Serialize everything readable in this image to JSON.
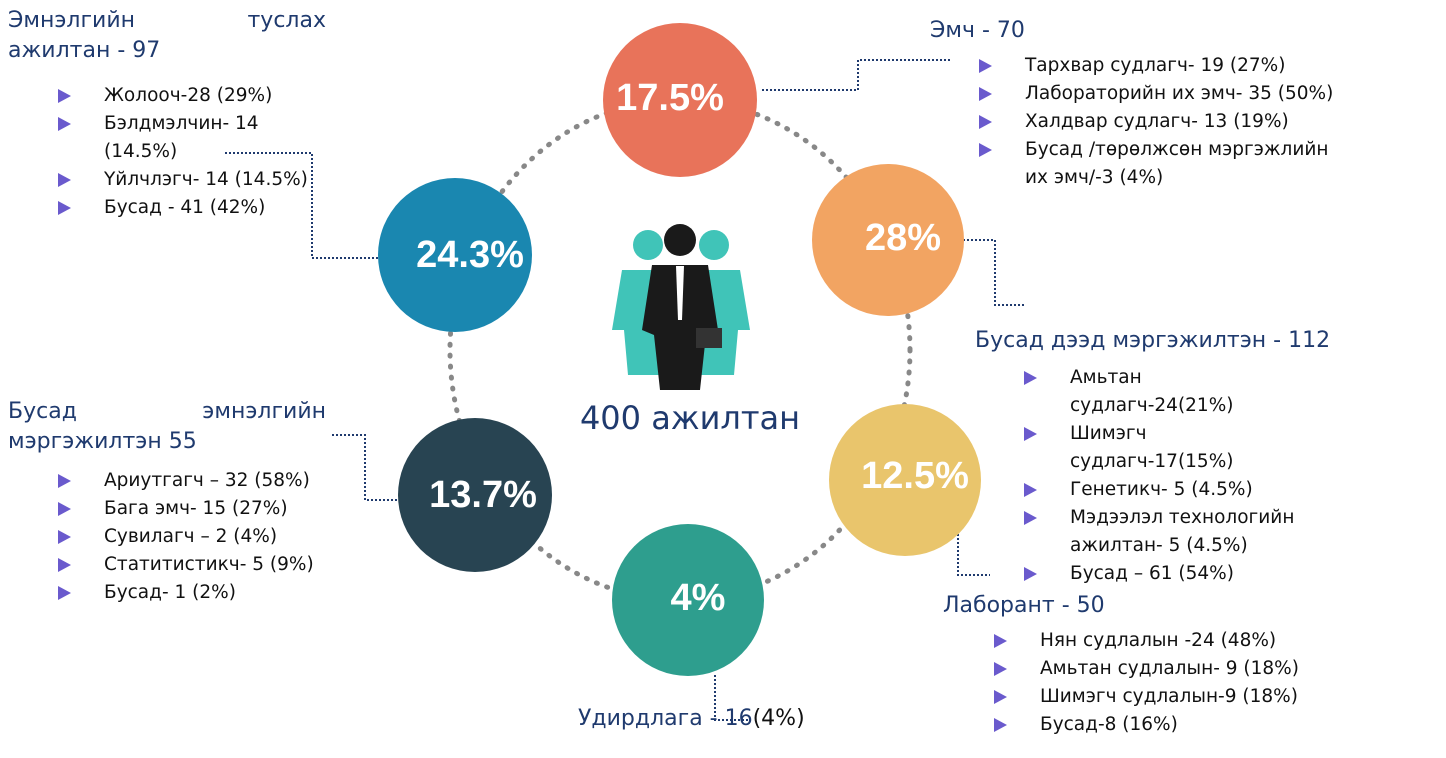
{
  "center_label": "400 ажилтан",
  "circles": [
    "17.5%",
    "28%",
    "12.5%",
    "4%",
    "13.7%",
    "24.3%"
  ],
  "groups": [
    {
      "title": "Эмнэлгийн туслах ажилтан - 97",
      "items": [
        "Жолооч-28 (29%)",
        "Бэлдмэлчин- 14 (14.5%)",
        "Үйлчлэгч- 14 (14.5%)",
        "Бусад - 41 (42%)"
      ]
    },
    {
      "title": "Эмч - 70",
      "items": [
        "Тархвар судлагч- 19 (27%)",
        "Лабораторийн их эмч- 35 (50%)",
        "Халдвар судлагч- 13 (19%)",
        "Бусад /төрөлжсөн мэргэжлийн их эмч/-3  (4%)"
      ]
    },
    {
      "title": "Бусад дээд мэргэжилтэн - 112",
      "items": [
        "Амьтан судлагч-24(21%)",
        "Шимэгч судлагч-17(15%)",
        "Генетикч- 5 (4.5%)",
        "Мэдээлэл технологийн ажилтан- 5 (4.5%)",
        "Бусад – 61 (54%)"
      ]
    },
    {
      "title": "Лаборант - 50",
      "items": [
        "Нян судлалын -24 (48%)",
        "Амьтан судлалын- 9 (18%)",
        "Шимэгч судлалын-9 (18%)",
        "Бусад-8 (16%)"
      ]
    },
    {
      "title": "Бусад эмнэлгийн мэргэжилтэн 55",
      "items": [
        "Ариутгагч – 32 (58%)",
        "Бага эмч- 15 (27%)",
        "Сувилагч – 2 (4%)",
        "Статитистикч- 5 (9%)",
        "Бусад- 1 (2%)"
      ]
    },
    {
      "title": "Удирдлага - 16",
      "note": "(4%)"
    }
  ]
}
